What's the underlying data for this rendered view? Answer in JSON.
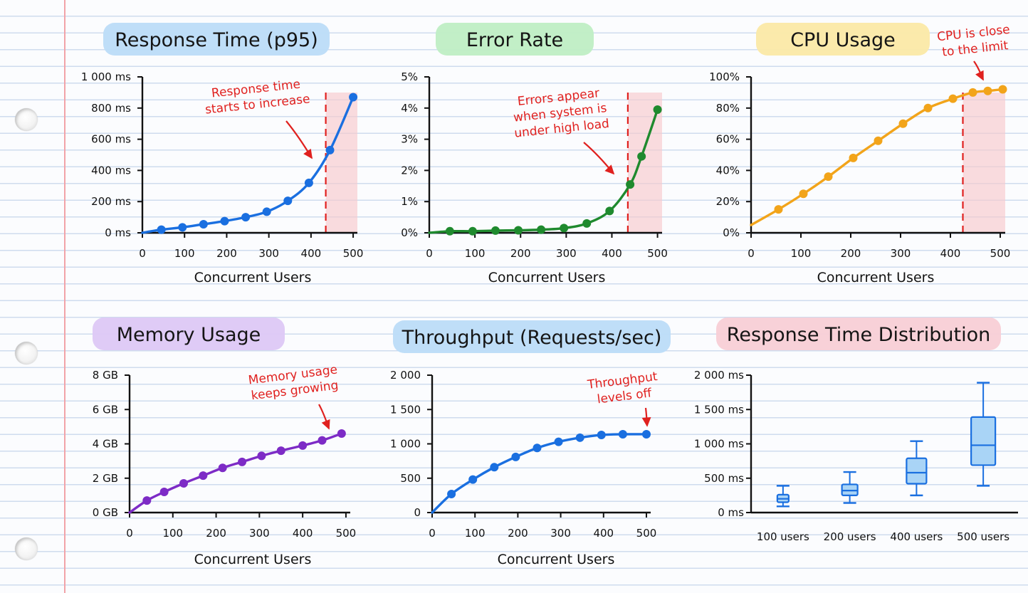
{
  "chart_data": [
    {
      "type": "line",
      "title": "Response Time (p95)",
      "xlabel": "Concurrent Users",
      "ylabel": "",
      "xlim": [
        0,
        510
      ],
      "ylim": [
        0,
        1000
      ],
      "x_ticks": [
        "0",
        "100",
        "200",
        "300",
        "400",
        "500"
      ],
      "y_ticks": [
        "0 ms",
        "200 ms",
        "400 ms",
        "600 ms",
        "800 ms",
        "1 000 ms"
      ],
      "series": [
        {
          "color": "#1a6fe0",
          "x": [
            0,
            45,
            95,
            145,
            195,
            245,
            295,
            345,
            395,
            445,
            500
          ],
          "y": [
            0,
            20,
            35,
            55,
            75,
            100,
            135,
            205,
            320,
            530,
            870
          ]
        }
      ],
      "threshold_x": 435,
      "shade_from_x": 435,
      "shade_color": "#f8c9cc",
      "annotation": [
        "Response time",
        "starts to increase"
      ]
    },
    {
      "type": "line",
      "title": "Error Rate",
      "xlabel": "Concurrent Users",
      "ylabel": "",
      "xlim": [
        0,
        510
      ],
      "ylim": [
        0,
        5
      ],
      "x_ticks": [
        "0",
        "100",
        "200",
        "300",
        "400",
        "500"
      ],
      "y_ticks": [
        "0%",
        "1%",
        "2%",
        "3%",
        "4%",
        "5%"
      ],
      "series": [
        {
          "color": "#1f8a2e",
          "x": [
            0,
            45,
            95,
            145,
            195,
            245,
            295,
            345,
            395,
            440,
            465,
            500
          ],
          "y": [
            0,
            0.05,
            0.05,
            0.07,
            0.08,
            0.1,
            0.15,
            0.3,
            0.7,
            1.55,
            2.45,
            3.95
          ]
        }
      ],
      "threshold_x": 435,
      "shade_from_x": 435,
      "shade_color": "#f8c9cc",
      "annotation": [
        "Errors appear",
        "when system is",
        "under high load"
      ]
    },
    {
      "type": "line",
      "title": "CPU Usage",
      "xlabel": "Concurrent Users",
      "ylabel": "",
      "xlim": [
        0,
        510
      ],
      "ylim": [
        0,
        100
      ],
      "x_ticks": [
        "0",
        "100",
        "200",
        "300",
        "400",
        "500"
      ],
      "y_ticks": [
        "0%",
        "20%",
        "40%",
        "60%",
        "80%",
        "100%"
      ],
      "series": [
        {
          "color": "#f2a41a",
          "x": [
            0,
            55,
            105,
            155,
            205,
            255,
            305,
            355,
            405,
            445,
            475,
            505
          ],
          "y": [
            5,
            15,
            25,
            36,
            48,
            59,
            70,
            80,
            86,
            90,
            91,
            92
          ]
        }
      ],
      "threshold_x": 425,
      "shade_from_x": 425,
      "shade_color": "#f8c9cc",
      "annotation": [
        "CPU is close",
        "to the limit"
      ]
    },
    {
      "type": "line",
      "title": "Memory Usage",
      "xlabel": "Concurrent Users",
      "ylabel": "",
      "xlim": [
        0,
        510
      ],
      "ylim": [
        0,
        8
      ],
      "x_ticks": [
        "0",
        "100",
        "200",
        "300",
        "400",
        "500"
      ],
      "y_ticks": [
        "0 GB",
        "2 GB",
        "4 GB",
        "6 GB",
        "8 GB"
      ],
      "series": [
        {
          "color": "#7d2bc6",
          "x": [
            0,
            40,
            80,
            125,
            170,
            215,
            260,
            305,
            350,
            400,
            445,
            490
          ],
          "y": [
            0,
            0.7,
            1.2,
            1.7,
            2.15,
            2.6,
            2.95,
            3.3,
            3.6,
            3.9,
            4.2,
            4.6
          ]
        }
      ],
      "annotation": [
        "Memory usage",
        "keeps growing"
      ]
    },
    {
      "type": "line",
      "title": "Throughput (Requests/sec)",
      "xlabel": "Concurrent Users",
      "ylabel": "",
      "xlim": [
        0,
        510
      ],
      "ylim": [
        0,
        2000
      ],
      "x_ticks": [
        "0",
        "100",
        "200",
        "300",
        "400",
        "500"
      ],
      "y_ticks": [
        "0",
        "500",
        "1 000",
        "1 500",
        "2 000"
      ],
      "series": [
        {
          "color": "#1a6fe0",
          "x": [
            0,
            45,
            95,
            145,
            195,
            245,
            295,
            345,
            395,
            445,
            500
          ],
          "y": [
            0,
            270,
            480,
            660,
            810,
            940,
            1030,
            1090,
            1130,
            1140,
            1140
          ]
        }
      ],
      "annotation": [
        "Throughput",
        "levels off"
      ]
    },
    {
      "type": "box",
      "title": "Response Time Distribution",
      "xlabel": "",
      "ylabel": "",
      "ylim": [
        0,
        2000
      ],
      "y_ticks": [
        "0 ms",
        "500 ms",
        "1 000 ms",
        "1 500 ms",
        "2 000 ms"
      ],
      "categories": [
        "100 users",
        "200 users",
        "400 users",
        "500 users"
      ],
      "boxes": [
        {
          "min": 90,
          "q1": 150,
          "median": 200,
          "q3": 260,
          "max": 390
        },
        {
          "min": 140,
          "q1": 250,
          "median": 320,
          "q3": 410,
          "max": 590
        },
        {
          "min": 250,
          "q1": 420,
          "median": 580,
          "q3": 790,
          "max": 1040
        },
        {
          "min": 390,
          "q1": 690,
          "median": 980,
          "q3": 1390,
          "max": 1890
        }
      ],
      "box_color": "#1a6fe0",
      "box_fill": "#a9d4f6"
    }
  ],
  "style": {
    "title_highlights": [
      "#bcdcf8",
      "#bfeec4",
      "#fbe9a7",
      "#ddc8f5",
      "#bcdcf8",
      "#f8cfd6"
    ],
    "annotation_color": "#e0211f",
    "axis_color": "#111111"
  }
}
